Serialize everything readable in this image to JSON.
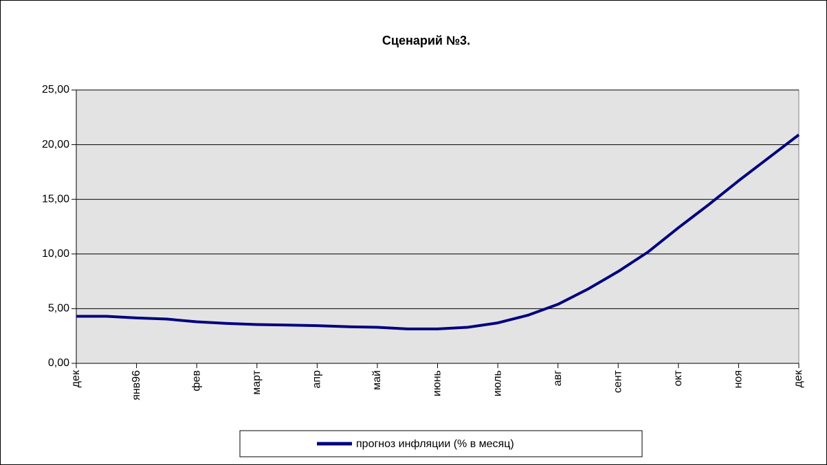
{
  "chart_data": {
    "type": "line",
    "title": "Сценарий №3.",
    "categories": [
      "дек",
      null,
      "янв96",
      null,
      "фев",
      null,
      "март",
      null,
      "апр",
      null,
      "май",
      null,
      "июнь",
      null,
      "июль",
      null,
      "авг",
      null,
      "сент",
      null,
      "окт",
      null,
      "ноя",
      null,
      "дек"
    ],
    "series": [
      {
        "name": "прогноз инфляции (% в месяц)",
        "color": "#000080",
        "values": [
          4.3,
          4.3,
          4.15,
          4.05,
          3.8,
          3.65,
          3.55,
          3.5,
          3.45,
          3.35,
          3.3,
          3.15,
          3.15,
          3.3,
          3.7,
          4.4,
          5.4,
          6.8,
          8.4,
          10.2,
          12.4,
          14.5,
          16.7,
          18.8,
          20.9
        ]
      }
    ],
    "ylim": [
      0,
      25
    ],
    "yticks": [
      {
        "value": 0,
        "label": "0,00"
      },
      {
        "value": 5,
        "label": "5,00"
      },
      {
        "value": 10,
        "label": "10,00"
      },
      {
        "value": 15,
        "label": "15,00"
      },
      {
        "value": 20,
        "label": "20,00"
      },
      {
        "value": 25,
        "label": "25,00"
      }
    ],
    "grid": true,
    "legend": "bottom"
  }
}
